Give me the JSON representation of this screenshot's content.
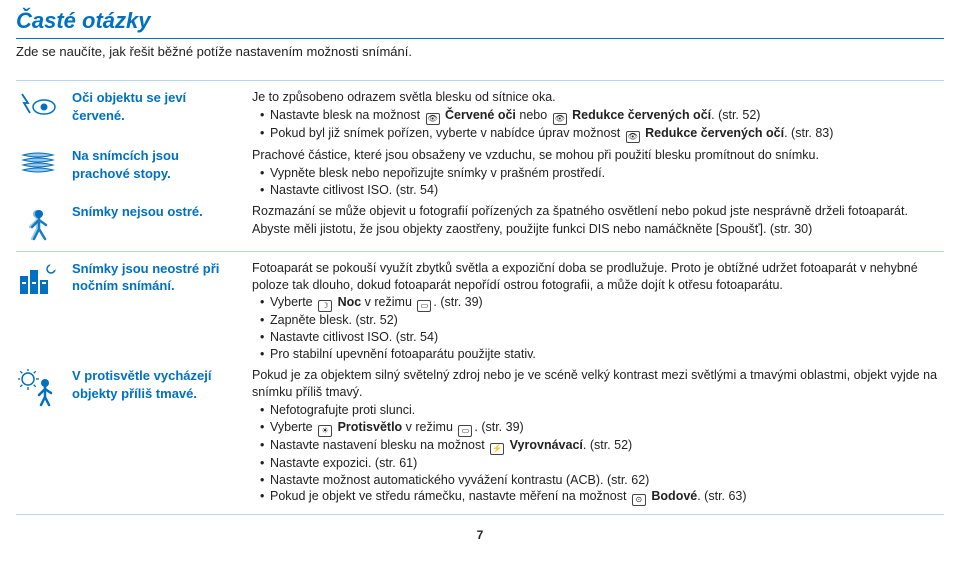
{
  "header": {
    "title": "Časté otázky",
    "subtitle": "Zde se naučíte, jak řešit běžné potíže nastavením možnosti snímání."
  },
  "rows": [
    {
      "icon": "eye-flash",
      "question": "Oči objektu se jeví červené.",
      "intro": "Je to způsobeno odrazem světla blesku od sítnice oka.",
      "bullets": [
        {
          "pre": "Nastavte blesk na možnost ",
          "iconA": "eye-red",
          "midA": " <b>Červené oči</b> nebo ",
          "iconB": "eye-fix",
          "midB": " <b>Redukce červených očí</b>. (str. 52)"
        },
        {
          "pre": "Pokud byl již snímek pořízen, vyberte v nabídce úprav možnost ",
          "iconA": "eye-fix",
          "midA": " <b>Redukce červených očí</b>. (str. 83)"
        }
      ]
    },
    {
      "icon": "stack",
      "question": "Na snímcích jsou prachové stopy.",
      "intro": "Prachové částice, které jsou obsaženy ve vzduchu, se mohou při použití blesku promítnout do snímku.",
      "bullets": [
        {
          "pre": "Vypněte blesk nebo nepořizujte snímky v prašném prostředí."
        },
        {
          "pre": "Nastavte citlivost ISO. (str. 54)"
        }
      ]
    },
    {
      "icon": "blur-person",
      "question": "Snímky nejsou ostré.",
      "intro": "Rozmazání se může objevit u fotografií pořízených za špatného osvětlení nebo pokud jste nesprávně drželi fotoaparát.\nAbyste měli jistotu, že jsou objekty zaostřeny, použijte funkci DIS nebo namáčkněte [Spoušť]. (str. 30)"
    },
    {
      "icon": "city-night",
      "question": "Snímky jsou neostré při nočním snímání.",
      "intro": "Fotoaparát se pokouší využít zbytků světla a expoziční doba se prodlužuje. Proto je obtížné udržet fotoaparát v nehybné poloze tak dlouho, dokud fotoaparát nepořídí ostrou fotografii, a může dojít k otřesu fotoaparátu.",
      "bullets": [
        {
          "pre": "Vyberte ",
          "iconA": "moon",
          "midA": " <b>Noc</b> v režimu ",
          "iconB": "scene",
          "midB": ". (str. 39)"
        },
        {
          "pre": "Zapněte blesk. (str. 52)"
        },
        {
          "pre": "Nastavte citlivost ISO. (str. 54)"
        },
        {
          "pre": "Pro stabilní upevnění fotoaparátu použijte stativ."
        }
      ]
    },
    {
      "icon": "backlight-person",
      "question": "V protisvětle vycházejí objekty příliš tmavé.",
      "intro": "Pokud je za objektem silný světelný zdroj nebo je ve scéně velký kontrast mezi světlými a tmavými oblastmi, objekt vyjde na snímku příliš tmavý.",
      "bullets": [
        {
          "pre": "Nefotografujte proti slunci."
        },
        {
          "pre": "Vyberte ",
          "iconA": "backlight",
          "midA": " <b>Protisvětlo</b> v režimu ",
          "iconB": "scene",
          "midB": ". (str. 39)"
        },
        {
          "pre": "Nastavte nastavení blesku na možnost ",
          "iconA": "bolt",
          "midA": " <b>Vyrovnávací</b>. (str. 52)"
        },
        {
          "pre": "Nastavte expozici. (str. 61)"
        },
        {
          "pre": "Nastavte možnost automatického vyvážení kontrastu (ACB). (str. 62)"
        },
        {
          "pre": "Pokud je objekt ve středu rámečku, nastavte měření na možnost ",
          "iconA": "spot",
          "midA": " <b>Bodové</b>. (str. 63)"
        }
      ]
    }
  ],
  "pagenum": "7"
}
